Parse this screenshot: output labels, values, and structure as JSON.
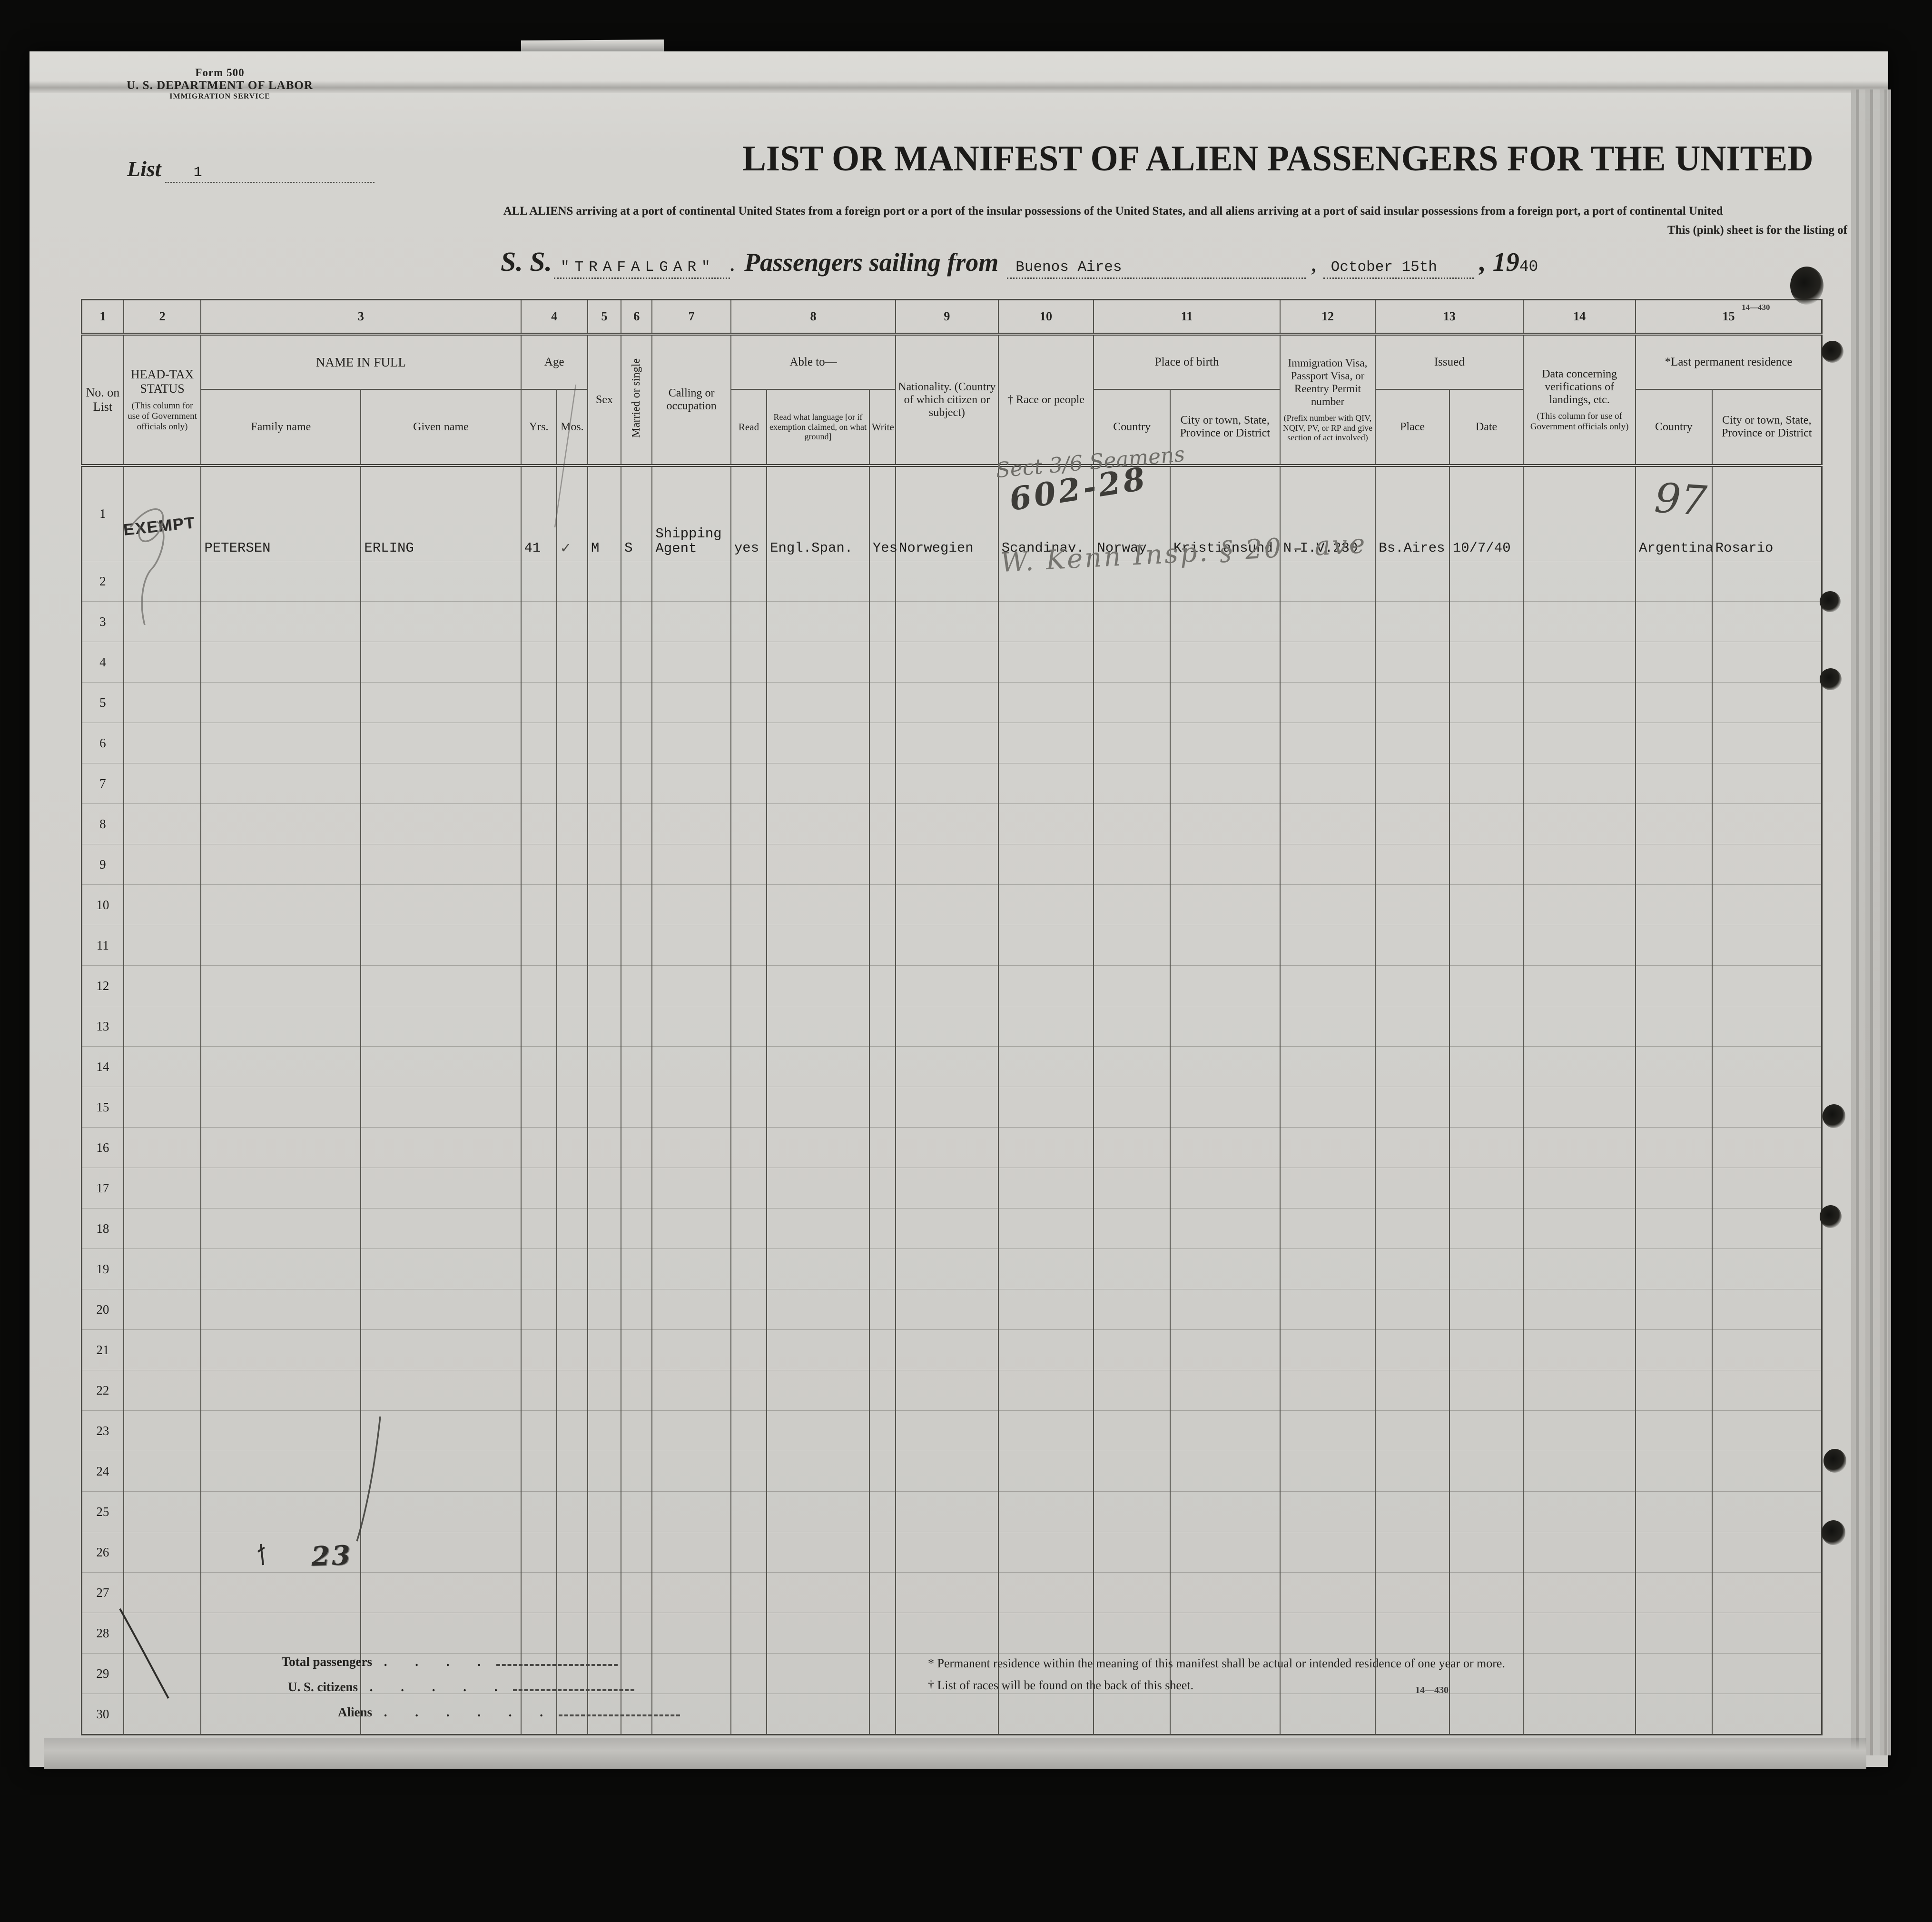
{
  "page": {
    "form_number": "Form 500",
    "department": "U. S. DEPARTMENT OF LABOR",
    "service": "IMMIGRATION SERVICE",
    "list_label": "List",
    "list_value": "1",
    "title": "LIST OR MANIFEST OF ALIEN PASSENGERS FOR THE UNITED",
    "subtitle_line1": "ALL ALIENS arriving at a port of continental United States from a foreign port or a port of the insular possessions of the United States, and all aliens arriving at a port of said insular possessions from a foreign port, a port of continental United",
    "subtitle_line2": "This (pink) sheet is for the listing of",
    "form_ref": "14—430"
  },
  "vessel": {
    "ss_label": "S. S.",
    "ship_name": "\"TRAFALGAR\"",
    "period": ".",
    "sailing_label": "Passengers sailing from",
    "port": "Buenos Aires",
    "comma": ",",
    "date": "October  15th",
    "year_prefix": ", 19",
    "year_suffix": "40"
  },
  "table": {
    "column_numbers": [
      "1",
      "2",
      "3",
      "4",
      "5",
      "6",
      "7",
      "8",
      "9",
      "10",
      "11",
      "12",
      "13",
      "14",
      "15"
    ],
    "headers": {
      "no_on_list": "No. on List",
      "head_tax": "HEAD-TAX STATUS",
      "head_tax_note": "(This column for use of Government officials only)",
      "name_in_full": "NAME IN FULL",
      "family_name": "Family name",
      "given_name": "Given name",
      "age": "Age",
      "yrs": "Yrs.",
      "mos": "Mos.",
      "sex": "Sex",
      "married_or_single": "Married or single",
      "calling": "Calling or occupation",
      "able_to": "Able to—",
      "read": "Read",
      "read_language": "Read what language [or if exemption claimed, on what ground]",
      "write": "Write",
      "nationality": "Nationality. (Country of which citizen or subject)",
      "race": "† Race or people",
      "place_of_birth": "Place of birth",
      "birth_country": "Country",
      "birth_city": "City or town, State, Province or District",
      "visa": "Immigration Visa, Passport Visa, or Reentry Permit number",
      "visa_note": "(Prefix number with QIV, NQIV, PV, or RP and give section of act involved)",
      "issued": "Issued",
      "issued_place": "Place",
      "issued_date": "Date",
      "verifications": "Data concerning verifications of landings, etc.",
      "verifications_note": "(This column for use of Government officials only)",
      "last_residence": "*Last permanent residence",
      "residence_country": "Country",
      "residence_city": "City or town, State, Province or District"
    },
    "rows": [
      {
        "no": "1",
        "head_tax": "EXEMPT",
        "family": "PETERSEN",
        "given": "ERLING",
        "yrs": "41",
        "mos": "✓",
        "sex": "M",
        "married": "S",
        "calling": "Shipping Agent",
        "read": "yes",
        "read_language": "Engl.Span.",
        "write": "Yes",
        "nationality": "Norwegien",
        "race": "Scandinav.",
        "birth_country": "Norway",
        "birth_city": "Kristiansund",
        "visa": "N.I.V.230",
        "issued_place": "Bs.Aires",
        "issued_date": "10/7/40",
        "verifications": "",
        "res_country": "Argentina",
        "res_city": "Rosario"
      },
      {
        "no": "2"
      },
      {
        "no": "3"
      },
      {
        "no": "4"
      },
      {
        "no": "5"
      },
      {
        "no": "6"
      },
      {
        "no": "7"
      },
      {
        "no": "8"
      },
      {
        "no": "9"
      },
      {
        "no": "10"
      },
      {
        "no": "11"
      },
      {
        "no": "12"
      },
      {
        "no": "13"
      },
      {
        "no": "14"
      },
      {
        "no": "15"
      },
      {
        "no": "16"
      },
      {
        "no": "17"
      },
      {
        "no": "18"
      },
      {
        "no": "19"
      },
      {
        "no": "20"
      },
      {
        "no": "21"
      },
      {
        "no": "22"
      },
      {
        "no": "23"
      },
      {
        "no": "24"
      },
      {
        "no": "25"
      },
      {
        "no": "26"
      },
      {
        "no": "27"
      },
      {
        "no": "28"
      },
      {
        "no": "29"
      },
      {
        "no": "30"
      }
    ]
  },
  "annotations": {
    "sect_note": "Sect 3/6 Seamens",
    "case_number": "602-28",
    "inspector_note": "W. Kenn  Insp. § 20 - ave",
    "tally_right": "97",
    "tally_bottom": "23"
  },
  "footer": {
    "total_passengers_label": "Total passengers",
    "us_citizens_label": "U. S. citizens",
    "aliens_label": "Aliens",
    "leader_dots_4": ". . . .",
    "leader_dots_5": ". . . . .",
    "leader_dots_6": ". . . . . .",
    "footnote1": "* Permanent residence within the meaning of this manifest shall be actual or intended residence of one year or more.",
    "footnote2": "† List of races will be found on the back of this sheet.",
    "form_ref": "14—430"
  }
}
